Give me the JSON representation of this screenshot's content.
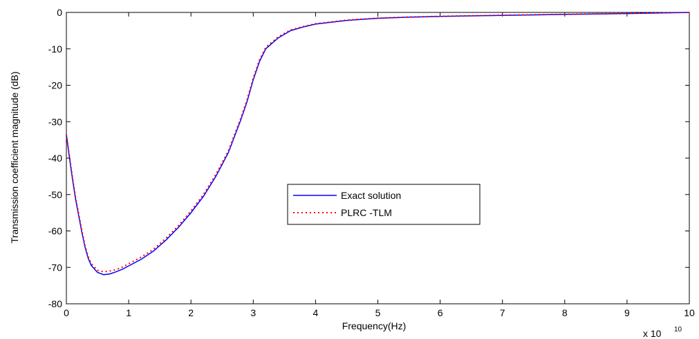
{
  "chart_data": {
    "type": "line",
    "xlabel": "Frequency(Hz)",
    "ylabel": "Transmission coefficient magnitude (dB)",
    "x_exponent_label": "x 10",
    "x_exponent_power": "10",
    "xlim": [
      0,
      100000000000
    ],
    "ylim": [
      -80,
      0
    ],
    "x_ticks": [
      0,
      1,
      2,
      3,
      4,
      5,
      6,
      7,
      8,
      9,
      10
    ],
    "y_ticks": [
      0,
      -10,
      -20,
      -30,
      -40,
      -50,
      -60,
      -70,
      -80
    ],
    "grid": false,
    "legend_position": "center",
    "series": [
      {
        "name": "Exact solution",
        "color": "#0000ff",
        "style": "solid",
        "x": [
          0,
          500000000,
          1000000000,
          1500000000,
          2000000000,
          2500000000,
          3000000000,
          3500000000,
          4000000000,
          5000000000,
          6000000000,
          7000000000,
          8000000000,
          9000000000,
          10000000000,
          12000000000,
          14000000000,
          16000000000,
          18000000000,
          20000000000,
          22000000000,
          24000000000,
          26000000000,
          28000000000,
          29000000000,
          30000000000,
          31000000000,
          32000000000,
          34000000000,
          36000000000,
          38000000000,
          40000000000,
          45000000000,
          50000000000,
          55000000000,
          60000000000,
          70000000000,
          80000000000,
          90000000000,
          100000000000
        ],
        "y": [
          -33.5,
          -40,
          -46,
          -51.5,
          -56,
          -60.5,
          -64.5,
          -67.5,
          -69.5,
          -71.4,
          -72,
          -71.8,
          -71.2,
          -70.5,
          -69.6,
          -67.8,
          -65.5,
          -62.5,
          -59,
          -55,
          -50.5,
          -45,
          -38.5,
          -29.5,
          -24.5,
          -18.5,
          -13.5,
          -10,
          -7,
          -5,
          -4,
          -3.2,
          -2.2,
          -1.6,
          -1.3,
          -1.1,
          -0.8,
          -0.55,
          -0.3,
          0
        ]
      },
      {
        "name": "PLRC -TLM",
        "color": "#ff0000",
        "style": "dotted",
        "x": [
          0,
          500000000,
          1000000000,
          1500000000,
          2000000000,
          2500000000,
          3000000000,
          3500000000,
          4000000000,
          5000000000,
          6000000000,
          7000000000,
          8000000000,
          9000000000,
          10000000000,
          12000000000,
          14000000000,
          16000000000,
          18000000000,
          20000000000,
          22000000000,
          24000000000,
          26000000000,
          28000000000,
          29000000000,
          30000000000,
          31000000000,
          32000000000,
          34000000000,
          36000000000,
          38000000000,
          40000000000,
          45000000000,
          50000000000,
          55000000000,
          60000000000,
          70000000000,
          80000000000,
          90000000000,
          100000000000
        ],
        "y": [
          -33.5,
          -39.5,
          -45.5,
          -51,
          -55.5,
          -60,
          -64,
          -67,
          -69,
          -70.8,
          -71.2,
          -71,
          -70.6,
          -69.9,
          -69,
          -67.2,
          -65,
          -62,
          -58.5,
          -54.5,
          -50,
          -44.5,
          -38,
          -29,
          -24,
          -18,
          -13,
          -9.6,
          -6.7,
          -4.8,
          -3.9,
          -3.1,
          -2.1,
          -1.55,
          -1.25,
          -1.05,
          -0.75,
          -0.5,
          -0.25,
          0
        ]
      }
    ]
  }
}
